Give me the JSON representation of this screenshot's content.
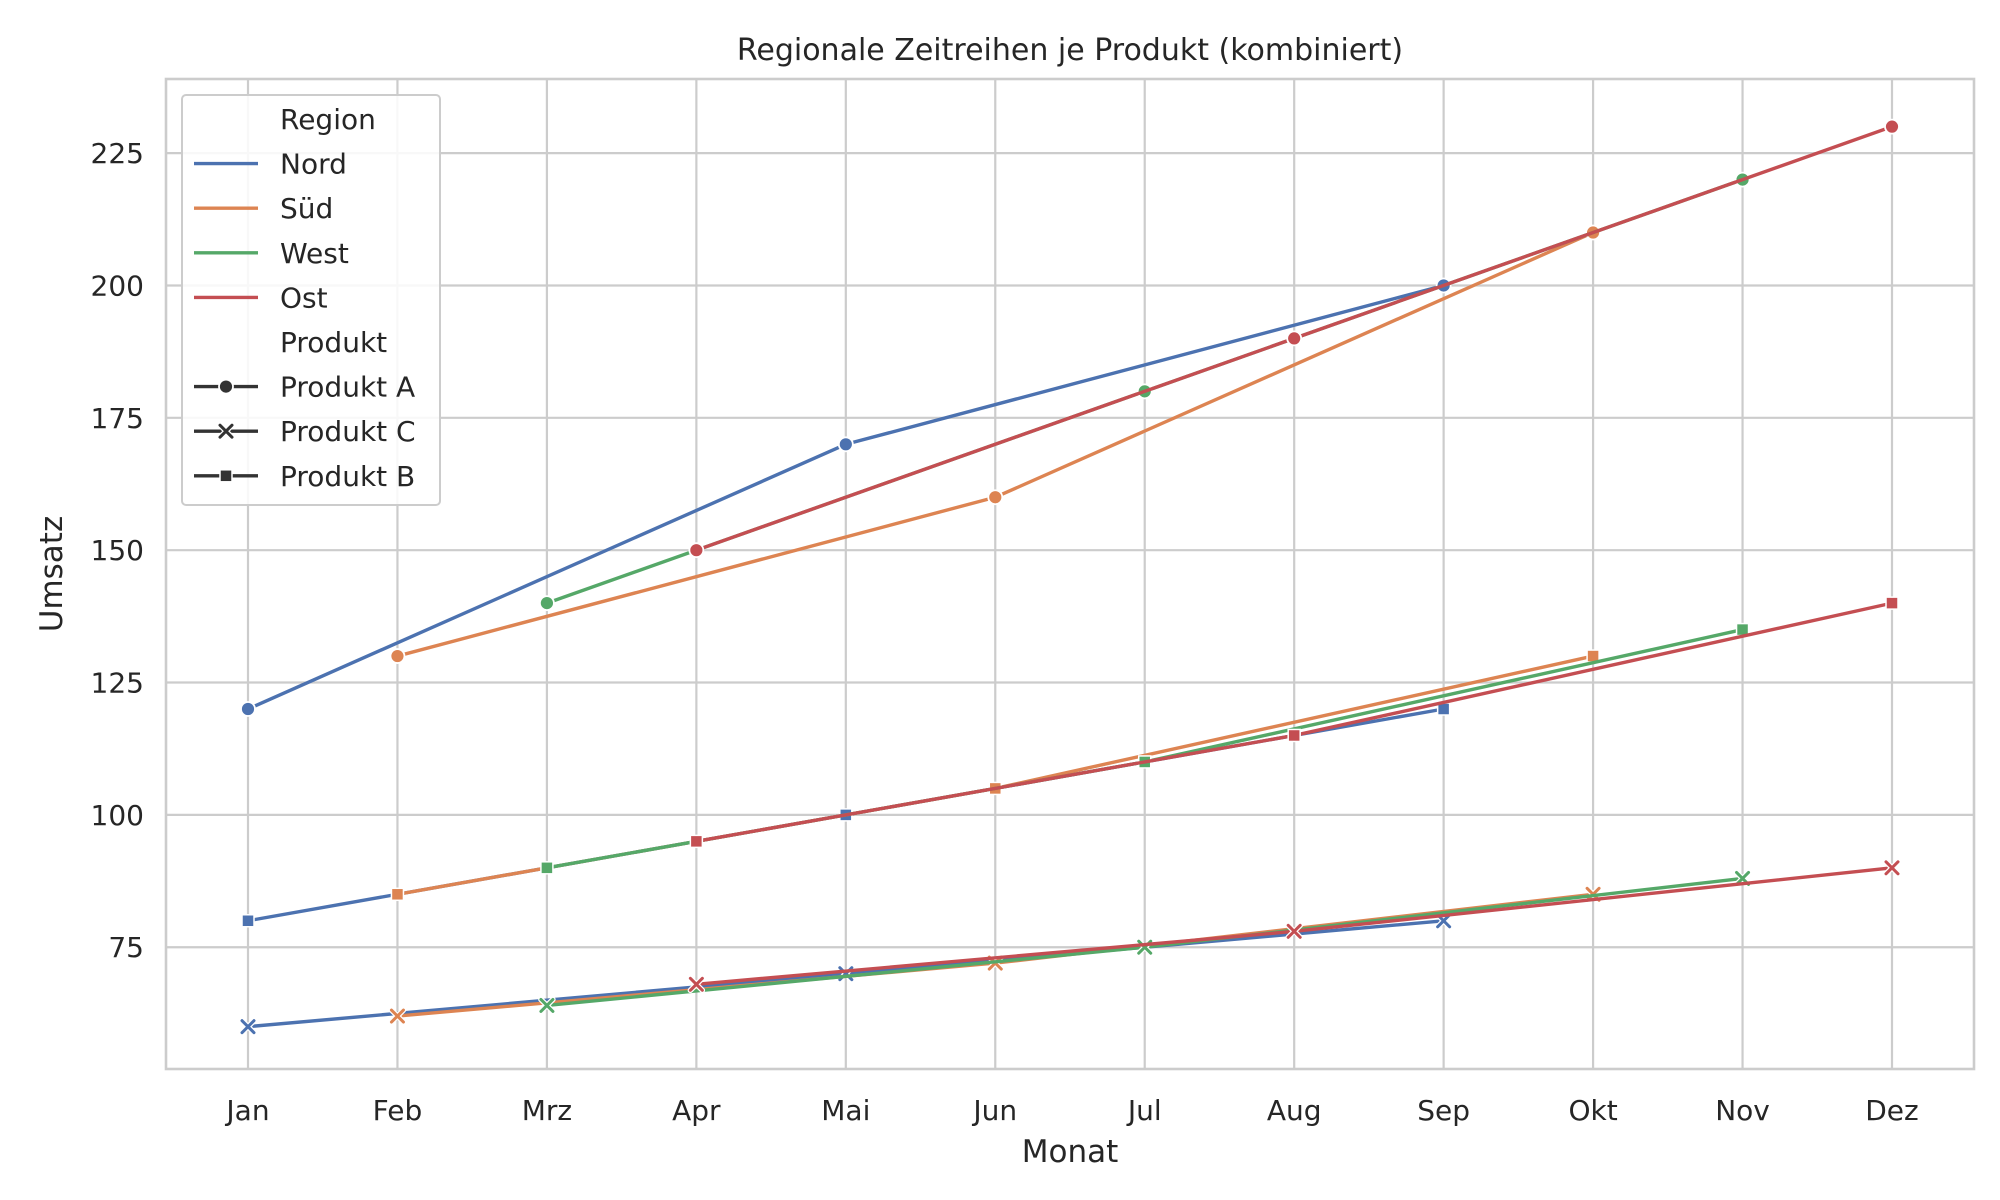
{
  "chart_data": {
    "type": "line",
    "title": "Regionale Zeitreihen je Produkt (kombiniert)",
    "xlabel": "Monat",
    "ylabel": "Umsatz",
    "categories": [
      "Jan",
      "Feb",
      "Mrz",
      "Apr",
      "Mai",
      "Jun",
      "Jul",
      "Aug",
      "Sep",
      "Okt",
      "Nov",
      "Dez"
    ],
    "ylim": [
      52,
      239
    ],
    "yticks": [
      75,
      100,
      125,
      150,
      175,
      200,
      225
    ],
    "grid": true,
    "legend_position": "top-left",
    "legend": {
      "region_title": "Region",
      "regions": [
        {
          "name": "Nord",
          "color": "#4c72b0"
        },
        {
          "name": "Süd",
          "color": "#dd8452"
        },
        {
          "name": "West",
          "color": "#55a868"
        },
        {
          "name": "Ost",
          "color": "#c44e52"
        }
      ],
      "product_title": "Produkt",
      "products": [
        {
          "name": "Produkt A",
          "marker": "circle"
        },
        {
          "name": "Produkt C",
          "marker": "x"
        },
        {
          "name": "Produkt B",
          "marker": "square"
        }
      ]
    },
    "series": [
      {
        "region": "Nord",
        "product": "Produkt A",
        "color": "#4c72b0",
        "marker": "circle",
        "points": [
          {
            "m": "Jan",
            "v": 120
          },
          {
            "m": "Mai",
            "v": 170
          },
          {
            "m": "Sep",
            "v": 200
          }
        ]
      },
      {
        "region": "Süd",
        "product": "Produkt A",
        "color": "#dd8452",
        "marker": "circle",
        "points": [
          {
            "m": "Feb",
            "v": 130
          },
          {
            "m": "Jun",
            "v": 160
          },
          {
            "m": "Okt",
            "v": 210
          }
        ]
      },
      {
        "region": "West",
        "product": "Produkt A",
        "color": "#55a868",
        "marker": "circle",
        "points": [
          {
            "m": "Mrz",
            "v": 140
          },
          {
            "m": "Jul",
            "v": 180
          },
          {
            "m": "Nov",
            "v": 220
          }
        ]
      },
      {
        "region": "Ost",
        "product": "Produkt A",
        "color": "#c44e52",
        "marker": "circle",
        "points": [
          {
            "m": "Apr",
            "v": 150
          },
          {
            "m": "Aug",
            "v": 190
          },
          {
            "m": "Dez",
            "v": 230
          }
        ]
      },
      {
        "region": "Nord",
        "product": "Produkt C",
        "color": "#4c72b0",
        "marker": "x",
        "points": [
          {
            "m": "Jan",
            "v": 60
          },
          {
            "m": "Mai",
            "v": 70
          },
          {
            "m": "Sep",
            "v": 80
          }
        ]
      },
      {
        "region": "Süd",
        "product": "Produkt C",
        "color": "#dd8452",
        "marker": "x",
        "points": [
          {
            "m": "Feb",
            "v": 62
          },
          {
            "m": "Jun",
            "v": 72
          },
          {
            "m": "Okt",
            "v": 85
          }
        ]
      },
      {
        "region": "West",
        "product": "Produkt C",
        "color": "#55a868",
        "marker": "x",
        "points": [
          {
            "m": "Mrz",
            "v": 64
          },
          {
            "m": "Jul",
            "v": 75
          },
          {
            "m": "Nov",
            "v": 88
          }
        ]
      },
      {
        "region": "Ost",
        "product": "Produkt C",
        "color": "#c44e52",
        "marker": "x",
        "points": [
          {
            "m": "Apr",
            "v": 68
          },
          {
            "m": "Aug",
            "v": 78
          },
          {
            "m": "Dez",
            "v": 90
          }
        ]
      },
      {
        "region": "Nord",
        "product": "Produkt B",
        "color": "#4c72b0",
        "marker": "square",
        "points": [
          {
            "m": "Jan",
            "v": 80
          },
          {
            "m": "Mai",
            "v": 100
          },
          {
            "m": "Sep",
            "v": 120
          }
        ]
      },
      {
        "region": "Süd",
        "product": "Produkt B",
        "color": "#dd8452",
        "marker": "square",
        "points": [
          {
            "m": "Feb",
            "v": 85
          },
          {
            "m": "Jun",
            "v": 105
          },
          {
            "m": "Okt",
            "v": 130
          }
        ]
      },
      {
        "region": "West",
        "product": "Produkt B",
        "color": "#55a868",
        "marker": "square",
        "points": [
          {
            "m": "Mrz",
            "v": 90
          },
          {
            "m": "Jul",
            "v": 110
          },
          {
            "m": "Nov",
            "v": 135
          }
        ]
      },
      {
        "region": "Ost",
        "product": "Produkt B",
        "color": "#c44e52",
        "marker": "square",
        "points": [
          {
            "m": "Apr",
            "v": 95
          },
          {
            "m": "Aug",
            "v": 115
          },
          {
            "m": "Dez",
            "v": 140
          }
        ]
      }
    ]
  }
}
